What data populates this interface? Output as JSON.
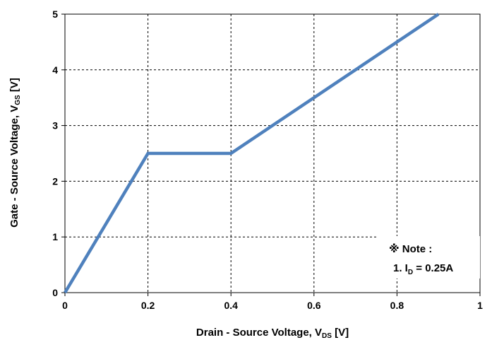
{
  "chart_data": {
    "type": "line",
    "xlabel": {
      "main": "Drain - Source Voltage, V",
      "sub": "DS",
      "unit": " [V]"
    },
    "ylabel": {
      "main": "Gate - Source Voltage, V",
      "sub": "GS",
      "unit": " [V]"
    },
    "xlim": [
      0,
      1
    ],
    "ylim": [
      0,
      5
    ],
    "x_ticks": [
      "0",
      "0.2",
      "0.4",
      "0.6",
      "0.8",
      "1"
    ],
    "y_ticks": [
      "0",
      "1",
      "2",
      "3",
      "4",
      "5"
    ],
    "grid": true,
    "series": [
      {
        "color": "#4f81bd",
        "x": [
          0,
          0.2,
          0.4,
          0.9
        ],
        "y": [
          0,
          2.5,
          2.5,
          5
        ]
      }
    ],
    "annotation": {
      "title": "※ Note :",
      "line_prefix": "1. I",
      "line_sub": "D",
      "line_suffix": " = 0.25A"
    }
  }
}
